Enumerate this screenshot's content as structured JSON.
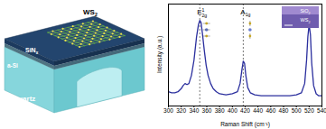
{
  "diagram": {
    "layers": [
      {
        "base": "WS",
        "sub": "2"
      },
      {
        "base": "SiN",
        "sub": "x"
      },
      {
        "base": "a-Si"
      },
      {
        "base": "Quartz"
      }
    ]
  },
  "chart_data": {
    "type": "line",
    "x_label": "Raman Shift (cm⁻¹)",
    "y_label": "Intensity (a.u.)",
    "xlim": [
      300,
      540
    ],
    "xticks": [
      300,
      320,
      340,
      360,
      380,
      400,
      420,
      440,
      460,
      480,
      500,
      520,
      540
    ],
    "ylim": [
      0,
      1
    ],
    "tick_labels": "x",
    "color": "#2b2f9e",
    "x": [
      300,
      305,
      310,
      315,
      320,
      323,
      326,
      329,
      332,
      336,
      340,
      344,
      347,
      349,
      351,
      353,
      356,
      359,
      362,
      366,
      370,
      375,
      380,
      390,
      400,
      408,
      412,
      415,
      417,
      419,
      421,
      424,
      428,
      435,
      445,
      460,
      475,
      490,
      500,
      508,
      513,
      516,
      518,
      520,
      522,
      524,
      527,
      531,
      535,
      540
    ],
    "values": [
      0.14,
      0.13,
      0.13,
      0.14,
      0.17,
      0.2,
      0.22,
      0.21,
      0.22,
      0.3,
      0.45,
      0.68,
      0.8,
      0.84,
      0.82,
      0.72,
      0.55,
      0.4,
      0.3,
      0.22,
      0.17,
      0.14,
      0.12,
      0.11,
      0.12,
      0.14,
      0.22,
      0.36,
      0.44,
      0.42,
      0.3,
      0.18,
      0.13,
      0.11,
      0.1,
      0.1,
      0.1,
      0.1,
      0.11,
      0.13,
      0.22,
      0.45,
      0.68,
      0.8,
      0.7,
      0.42,
      0.2,
      0.12,
      0.1,
      0.1
    ],
    "annotations": [
      {
        "label": {
          "base": "E",
          "sup": "1",
          "sub": "2g"
        },
        "x": 349,
        "line_style": "dashed"
      },
      {
        "label": {
          "base": "A",
          "sub": "1g"
        },
        "x": 417,
        "line_style": "dashed"
      }
    ],
    "inset": {
      "labels": [
        {
          "base": "SiO",
          "sub": "2"
        },
        {
          "base": "WS",
          "sub": "2"
        }
      ]
    }
  }
}
